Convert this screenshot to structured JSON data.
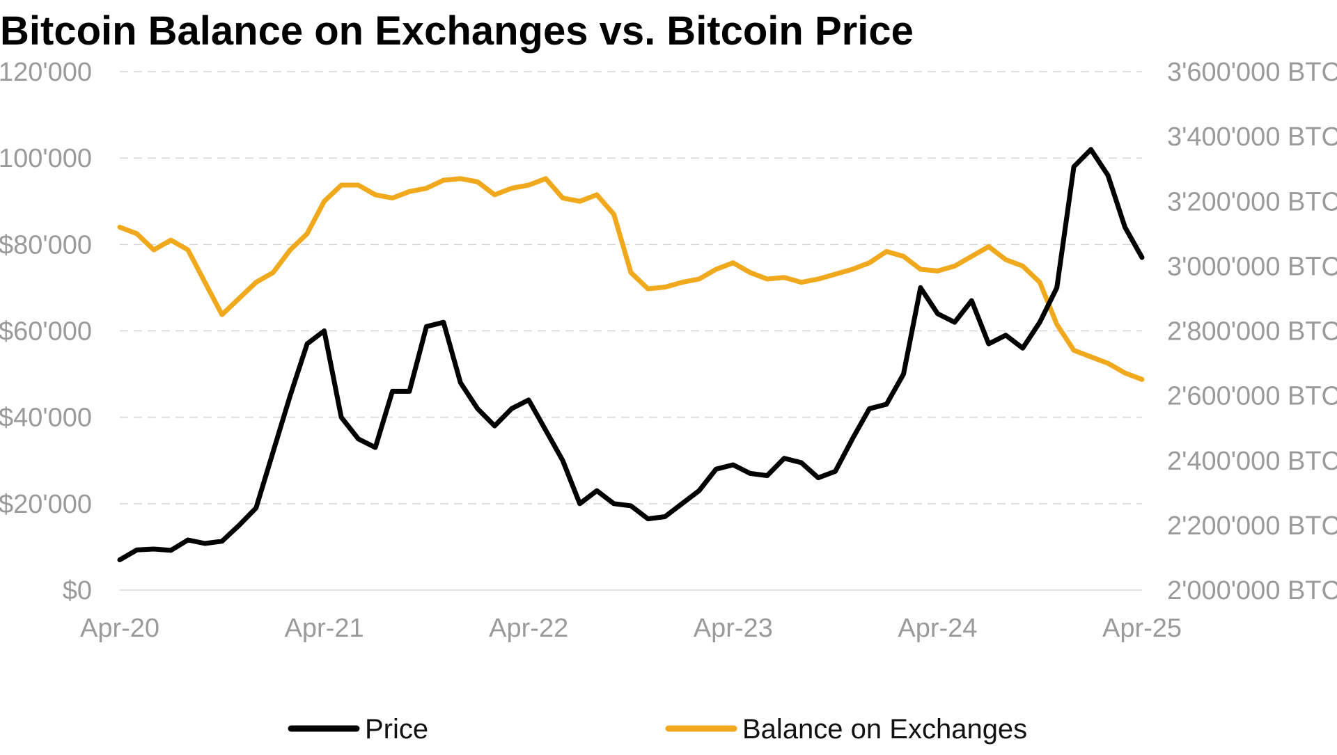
{
  "title": "Bitcoin Balance on Exchanges vs. Bitcoin Price",
  "chart_data": {
    "type": "line",
    "title": "Bitcoin Balance on Exchanges vs. Bitcoin Price",
    "xlabel": "",
    "ylabel_left": "",
    "ylabel_right": "",
    "x_range": [
      "2020-04",
      "2025-04"
    ],
    "x_ticks": [
      "Apr-20",
      "Apr-21",
      "Apr-22",
      "Apr-23",
      "Apr-24",
      "Apr-25"
    ],
    "y_left": {
      "range": [
        0,
        120000
      ],
      "ticks": [
        0,
        20000,
        40000,
        60000,
        80000,
        100000,
        120000
      ],
      "tick_labels": [
        "$0",
        "$20'000",
        "$40'000",
        "$60'000",
        "$80'000",
        "$100'000",
        "$120'000"
      ]
    },
    "y_right": {
      "range": [
        2000000,
        3600000
      ],
      "ticks": [
        2000000,
        2200000,
        2400000,
        2600000,
        2800000,
        3000000,
        3200000,
        3400000,
        3600000
      ],
      "tick_labels": [
        "2'000'000 BTC",
        "2'200'000 BTC",
        "2'400'000 BTC",
        "2'600'000 BTC",
        "2'800'000 BTC",
        "3'000'000 BTC",
        "3'200'000 BTC",
        "3'400'000 BTC",
        "3'600'000 BTC"
      ]
    },
    "grid": true,
    "legend_position": "bottom",
    "series": [
      {
        "name": "Price",
        "axis": "left",
        "color": "#000000",
        "points": [
          [
            "2020-04",
            7000
          ],
          [
            "2020-05",
            9300
          ],
          [
            "2020-06",
            9500
          ],
          [
            "2020-07",
            9200
          ],
          [
            "2020-08",
            11600
          ],
          [
            "2020-09",
            10800
          ],
          [
            "2020-10",
            11300
          ],
          [
            "2020-11",
            15000
          ],
          [
            "2020-12",
            19000
          ],
          [
            "2021-01",
            32000
          ],
          [
            "2021-02",
            45000
          ],
          [
            "2021-03",
            57000
          ],
          [
            "2021-04",
            60000
          ],
          [
            "2021-05",
            40000
          ],
          [
            "2021-06",
            35000
          ],
          [
            "2021-07",
            33000
          ],
          [
            "2021-08",
            46000
          ],
          [
            "2021-09",
            46000
          ],
          [
            "2021-10",
            61000
          ],
          [
            "2021-11",
            62000
          ],
          [
            "2021-12",
            48000
          ],
          [
            "2022-01",
            42000
          ],
          [
            "2022-02",
            38000
          ],
          [
            "2022-03",
            42000
          ],
          [
            "2022-04",
            44000
          ],
          [
            "2022-05",
            37000
          ],
          [
            "2022-06",
            30000
          ],
          [
            "2022-07",
            20000
          ],
          [
            "2022-08",
            23000
          ],
          [
            "2022-09",
            20000
          ],
          [
            "2022-10",
            19500
          ],
          [
            "2022-11",
            16500
          ],
          [
            "2022-12",
            17000
          ],
          [
            "2023-01",
            20000
          ],
          [
            "2023-02",
            23000
          ],
          [
            "2023-03",
            28000
          ],
          [
            "2023-04",
            29000
          ],
          [
            "2023-05",
            27000
          ],
          [
            "2023-06",
            26500
          ],
          [
            "2023-07",
            30500
          ],
          [
            "2023-08",
            29500
          ],
          [
            "2023-09",
            26000
          ],
          [
            "2023-10",
            27500
          ],
          [
            "2023-11",
            35000
          ],
          [
            "2023-12",
            42000
          ],
          [
            "2024-01",
            43000
          ],
          [
            "2024-02",
            50000
          ],
          [
            "2024-03",
            70000
          ],
          [
            "2024-04",
            64000
          ],
          [
            "2024-05",
            62000
          ],
          [
            "2024-06",
            67000
          ],
          [
            "2024-07",
            57000
          ],
          [
            "2024-08",
            59000
          ],
          [
            "2024-09",
            56000
          ],
          [
            "2024-10",
            62000
          ],
          [
            "2024-11",
            70000
          ],
          [
            "2024-12",
            98000
          ],
          [
            "2025-01",
            102000
          ],
          [
            "2025-02",
            96000
          ],
          [
            "2025-03",
            84000
          ],
          [
            "2025-04",
            77000
          ]
        ]
      },
      {
        "name": "Balance on Exchanges",
        "axis": "right",
        "color": "#f0a81c",
        "points": [
          [
            "2020-04",
            3120000
          ],
          [
            "2020-05",
            3100000
          ],
          [
            "2020-06",
            3050000
          ],
          [
            "2020-07",
            3080000
          ],
          [
            "2020-08",
            3050000
          ],
          [
            "2020-09",
            2950000
          ],
          [
            "2020-10",
            2850000
          ],
          [
            "2020-11",
            2900000
          ],
          [
            "2020-12",
            2950000
          ],
          [
            "2021-01",
            2980000
          ],
          [
            "2021-02",
            3050000
          ],
          [
            "2021-03",
            3100000
          ],
          [
            "2021-04",
            3200000
          ],
          [
            "2021-05",
            3250000
          ],
          [
            "2021-06",
            3250000
          ],
          [
            "2021-07",
            3220000
          ],
          [
            "2021-08",
            3210000
          ],
          [
            "2021-09",
            3230000
          ],
          [
            "2021-10",
            3240000
          ],
          [
            "2021-11",
            3265000
          ],
          [
            "2021-12",
            3270000
          ],
          [
            "2022-01",
            3260000
          ],
          [
            "2022-02",
            3220000
          ],
          [
            "2022-03",
            3240000
          ],
          [
            "2022-04",
            3250000
          ],
          [
            "2022-05",
            3270000
          ],
          [
            "2022-06",
            3210000
          ],
          [
            "2022-07",
            3200000
          ],
          [
            "2022-08",
            3220000
          ],
          [
            "2022-09",
            3160000
          ],
          [
            "2022-10",
            2980000
          ],
          [
            "2022-11",
            2930000
          ],
          [
            "2022-12",
            2935000
          ],
          [
            "2023-01",
            2950000
          ],
          [
            "2023-02",
            2960000
          ],
          [
            "2023-03",
            2990000
          ],
          [
            "2023-04",
            3010000
          ],
          [
            "2023-05",
            2980000
          ],
          [
            "2023-06",
            2960000
          ],
          [
            "2023-07",
            2965000
          ],
          [
            "2023-08",
            2950000
          ],
          [
            "2023-09",
            2960000
          ],
          [
            "2023-10",
            2975000
          ],
          [
            "2023-11",
            2990000
          ],
          [
            "2023-12",
            3010000
          ],
          [
            "2024-01",
            3045000
          ],
          [
            "2024-02",
            3030000
          ],
          [
            "2024-03",
            2990000
          ],
          [
            "2024-04",
            2985000
          ],
          [
            "2024-05",
            3000000
          ],
          [
            "2024-06",
            3030000
          ],
          [
            "2024-07",
            3060000
          ],
          [
            "2024-08",
            3020000
          ],
          [
            "2024-09",
            3000000
          ],
          [
            "2024-10",
            2950000
          ],
          [
            "2024-11",
            2820000
          ],
          [
            "2024-12",
            2740000
          ],
          [
            "2025-01",
            2720000
          ],
          [
            "2025-02",
            2700000
          ],
          [
            "2025-03",
            2670000
          ],
          [
            "2025-04",
            2650000
          ]
        ]
      }
    ]
  }
}
